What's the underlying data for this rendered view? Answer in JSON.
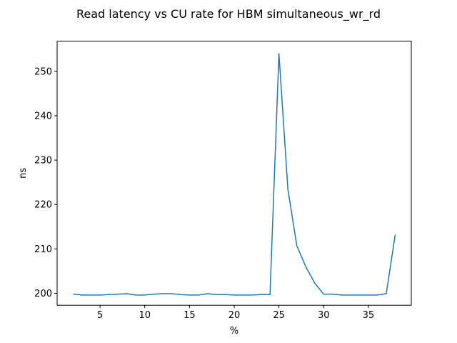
{
  "chart_data": {
    "type": "line",
    "title": "Read latency vs CU rate for HBM simultaneous_wr_rd",
    "xlabel": "%",
    "ylabel": "ns",
    "xlim": [
      0.2,
      39.8
    ],
    "ylim": [
      197.3,
      256.8
    ],
    "xticks": [
      5,
      10,
      15,
      20,
      25,
      30,
      35
    ],
    "yticks": [
      200,
      210,
      220,
      230,
      240,
      250
    ],
    "grid": false,
    "line_color": "#1f77b4",
    "series": [
      {
        "x": [
          2,
          3,
          4,
          5,
          6,
          7,
          8,
          9,
          10,
          11,
          12,
          13,
          14,
          15,
          16,
          17,
          18,
          19,
          20,
          21,
          22,
          23,
          24,
          25,
          26,
          27,
          28,
          29,
          30,
          31,
          32,
          33,
          34,
          35,
          36,
          37,
          38
        ],
        "values": [
          199.8,
          199.6,
          199.6,
          199.6,
          199.7,
          199.8,
          199.9,
          199.6,
          199.6,
          199.8,
          199.9,
          199.9,
          199.7,
          199.6,
          199.6,
          199.9,
          199.7,
          199.7,
          199.6,
          199.6,
          199.6,
          199.7,
          199.7,
          254.0,
          223.5,
          210.7,
          206.0,
          202.3,
          199.8,
          199.8,
          199.6,
          199.6,
          199.6,
          199.6,
          199.6,
          199.9,
          213.2
        ]
      }
    ]
  }
}
